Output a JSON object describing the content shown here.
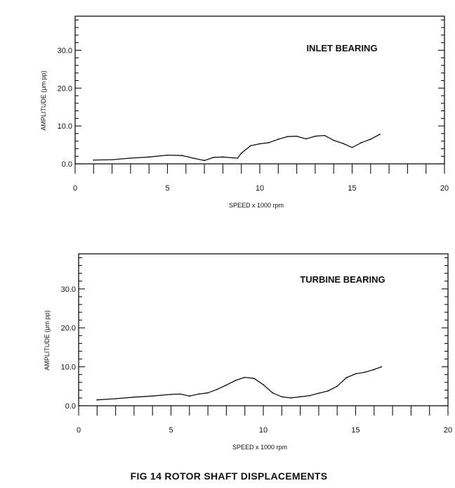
{
  "figure_caption": "FIG 14   ROTOR SHAFT DISPLACEMENTS",
  "chart_data": [
    {
      "type": "line",
      "annotation": "INLET BEARING",
      "xlabel": "SPEED x 1000 rpm",
      "ylabel": "AMPLITUDE (μm pp)",
      "xlim": [
        0,
        20
      ],
      "ylim": [
        0,
        39
      ],
      "x_ticks": [
        "0",
        "5",
        "10",
        "15",
        "20"
      ],
      "y_ticks": [
        "0.0",
        "10.0",
        "20.0",
        "30.0"
      ],
      "grid": false,
      "series": [
        {
          "x": [
            1.0,
            2.0,
            3.0,
            4.0,
            5.0,
            5.8,
            6.5,
            7.0,
            7.5,
            8.0,
            8.5,
            8.8,
            9.0,
            9.5,
            10.0,
            10.5,
            11.0,
            11.5,
            12.0,
            12.5,
            13.0,
            13.5,
            14.0,
            14.5,
            15.0,
            15.5,
            16.0,
            16.5
          ],
          "y": [
            1.0,
            1.1,
            1.5,
            1.8,
            2.3,
            2.2,
            1.4,
            0.9,
            1.7,
            1.8,
            1.6,
            1.5,
            2.8,
            4.8,
            5.3,
            5.6,
            6.5,
            7.2,
            7.3,
            6.6,
            7.3,
            7.5,
            6.2,
            5.4,
            4.3,
            5.6,
            6.5,
            7.8
          ]
        }
      ]
    },
    {
      "type": "line",
      "annotation": "TURBINE BEARING",
      "xlabel": "SPEED x 1000 rpm",
      "ylabel": "AMPLITUDE (μm pp)",
      "xlim": [
        0,
        20
      ],
      "ylim": [
        0,
        39
      ],
      "x_ticks": [
        "0",
        "5",
        "10",
        "15",
        "20"
      ],
      "y_ticks": [
        "0.0",
        "10.0",
        "20.0",
        "30.0"
      ],
      "grid": false,
      "series": [
        {
          "x": [
            1.0,
            2.0,
            3.0,
            4.0,
            5.0,
            5.5,
            6.0,
            6.5,
            7.0,
            7.5,
            8.0,
            8.5,
            9.0,
            9.5,
            10.0,
            10.5,
            11.0,
            11.5,
            12.0,
            12.5,
            13.0,
            13.5,
            14.0,
            14.5,
            15.0,
            15.5,
            16.0,
            16.4
          ],
          "y": [
            1.5,
            1.8,
            2.2,
            2.5,
            2.9,
            3.0,
            2.5,
            3.0,
            3.3,
            4.2,
            5.3,
            6.5,
            7.3,
            7.0,
            5.4,
            3.3,
            2.3,
            2.0,
            2.3,
            2.6,
            3.2,
            3.8,
            5.0,
            7.2,
            8.2,
            8.6,
            9.3,
            10.0
          ]
        }
      ]
    }
  ]
}
